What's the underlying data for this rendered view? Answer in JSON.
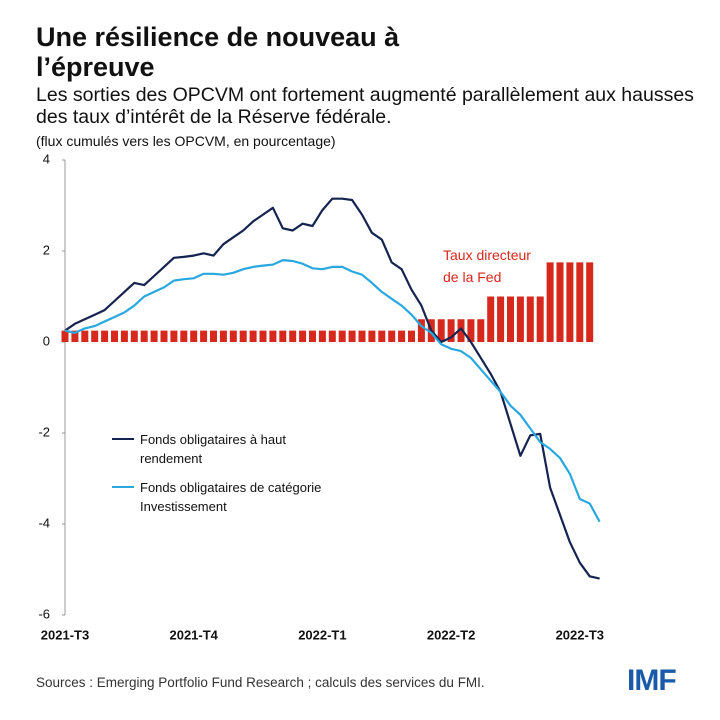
{
  "chart_data": {
    "type": "line_bar",
    "title": "Une résilience de nouveau à l’épreuve",
    "subtitle": "Les sorties des OPCVM ont fortement augmenté parallèlement aux hausses des taux d’intérêt de la Réserve fédérale.",
    "unit_note": "(flux cumulés vers les OPCVM, en pourcentage)",
    "source": "Sources : Emerging Portfolio Fund Research ; calculs des services du FMI.",
    "logo": "IMF",
    "annotation_lines": [
      "Taux directeur",
      "de la Fed"
    ],
    "categories": [
      "2021-T3",
      null,
      null,
      null,
      null,
      null,
      null,
      null,
      null,
      null,
      null,
      null,
      null,
      "2021-T4",
      null,
      null,
      null,
      null,
      null,
      null,
      null,
      null,
      null,
      null,
      null,
      null,
      "2022-T1",
      null,
      null,
      null,
      null,
      null,
      null,
      null,
      null,
      null,
      null,
      null,
      null,
      "2022-T2",
      null,
      null,
      null,
      null,
      null,
      null,
      null,
      null,
      null,
      null,
      null,
      null,
      "2022-T3",
      null,
      null
    ],
    "ylim": [
      -6,
      4
    ],
    "yticks": [
      -6,
      -4,
      -2,
      0,
      2,
      4
    ],
    "bar_series": {
      "name": "Taux directeur de la Fed",
      "color": "#d7281e",
      "values": [
        0.25,
        0.25,
        0.25,
        0.25,
        0.25,
        0.25,
        0.25,
        0.25,
        0.25,
        0.25,
        0.25,
        0.25,
        0.25,
        0.25,
        0.25,
        0.25,
        0.25,
        0.25,
        0.25,
        0.25,
        0.25,
        0.25,
        0.25,
        0.25,
        0.25,
        0.25,
        0.25,
        0.25,
        0.25,
        0.25,
        0.25,
        0.25,
        0.25,
        0.25,
        0.25,
        0.25,
        0.5,
        0.5,
        0.5,
        0.5,
        0.5,
        0.5,
        0.5,
        1,
        1,
        1,
        1,
        1,
        1,
        1.75,
        1.75,
        1.75,
        1.75,
        1.75,
        null
      ]
    },
    "series": [
      {
        "name": "Fonds obligataires à haut rendement",
        "color": "#14234f",
        "values": [
          0.25,
          0.4,
          0.5,
          0.6,
          0.7,
          0.9,
          1.1,
          1.3,
          1.25,
          1.45,
          1.65,
          1.85,
          1.87,
          1.9,
          1.95,
          1.9,
          2.15,
          2.3,
          2.45,
          2.65,
          2.8,
          2.95,
          2.5,
          2.45,
          2.6,
          2.55,
          2.9,
          3.15,
          3.15,
          3.12,
          2.8,
          2.4,
          2.25,
          1.75,
          1.6,
          1.15,
          0.8,
          0.25,
          0,
          0.1,
          0.3,
          0,
          -0.35,
          -0.7,
          -1.1,
          -1.8,
          -2.5,
          -2.05,
          -2.02,
          -3.2,
          -3.8,
          -4.4,
          -4.85,
          -5.15,
          -5.2
        ]
      },
      {
        "name": "Fonds obligataires de catégorie Investissement",
        "color": "#29a8df",
        "values": [
          0.25,
          0.2,
          0.3,
          0.35,
          0.45,
          0.55,
          0.65,
          0.8,
          1,
          1.1,
          1.2,
          1.35,
          1.38,
          1.4,
          1.5,
          1.5,
          1.48,
          1.52,
          1.6,
          1.65,
          1.68,
          1.7,
          1.8,
          1.78,
          1.72,
          1.62,
          1.6,
          1.65,
          1.65,
          1.55,
          1.48,
          1.3,
          1.1,
          0.95,
          0.8,
          0.6,
          0.35,
          0.2,
          -0.05,
          -0.15,
          -0.2,
          -0.35,
          -0.6,
          -0.85,
          -1.1,
          -1.4,
          -1.6,
          -1.9,
          -2.2,
          -2.35,
          -2.55,
          -2.9,
          -3.45,
          -3.55,
          -3.95
        ]
      }
    ]
  }
}
